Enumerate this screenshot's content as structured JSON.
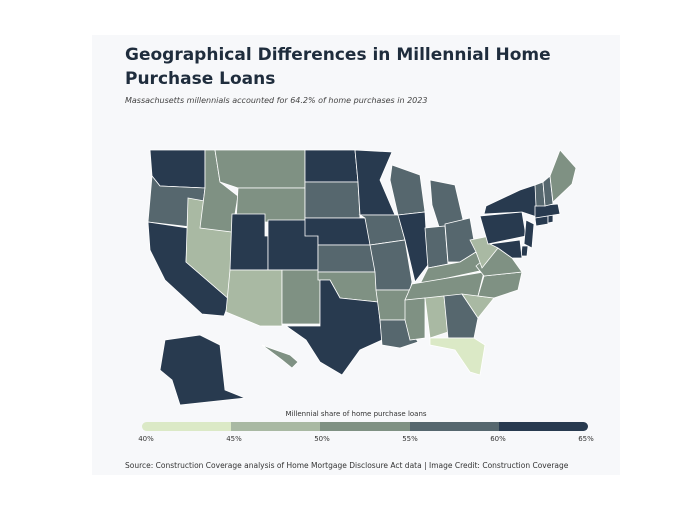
{
  "title": "Geographical Differences in Millennial Home Purchase Loans",
  "subtitle": "Massachusetts millennials accounted for 64.2% of home purchases in 2023",
  "legend": {
    "title": "Millennial share of home purchase loans",
    "ticks": [
      "40%",
      "45%",
      "50%",
      "55%",
      "60%",
      "65%"
    ],
    "colors": [
      "#dbe9c6",
      "#a9b9a3",
      "#7f9183",
      "#56676e",
      "#283a4f"
    ]
  },
  "source": "Source: Construction Coverage analysis of Home Mortgage Disclosure Act data | Image Credit: Construction Coverage",
  "map_data": {
    "bin_ranges": [
      "40%-45%",
      "45%-50%",
      "50%-55%",
      "55%-60%",
      "60%-65%"
    ],
    "state_bin": {
      "WA": 4,
      "OR": 3,
      "CA": 4,
      "NV": 1,
      "ID": 2,
      "MT": 2,
      "WY": 2,
      "UT": 4,
      "CO": 4,
      "AZ": 1,
      "NM": 2,
      "ND": 4,
      "SD": 3,
      "NE": 4,
      "KS": 3,
      "OK": 2,
      "TX": 4,
      "MN": 4,
      "IA": 3,
      "MO": 3,
      "AR": 2,
      "LA": 3,
      "WI": 3,
      "IL": 4,
      "MI": 3,
      "IN": 3,
      "OH": 3,
      "KY": 2,
      "TN": 2,
      "MS": 2,
      "AL": 1,
      "GA": 3,
      "FL": 0,
      "SC": 1,
      "NC": 2,
      "VA": 2,
      "WV": 1,
      "PA": 4,
      "NY": 4,
      "NJ": 4,
      "DE": 4,
      "MD": 4,
      "CT": 4,
      "RI": 4,
      "MA": 4,
      "VT": 3,
      "NH": 3,
      "ME": 2,
      "AK": 4,
      "HI": 2
    }
  }
}
